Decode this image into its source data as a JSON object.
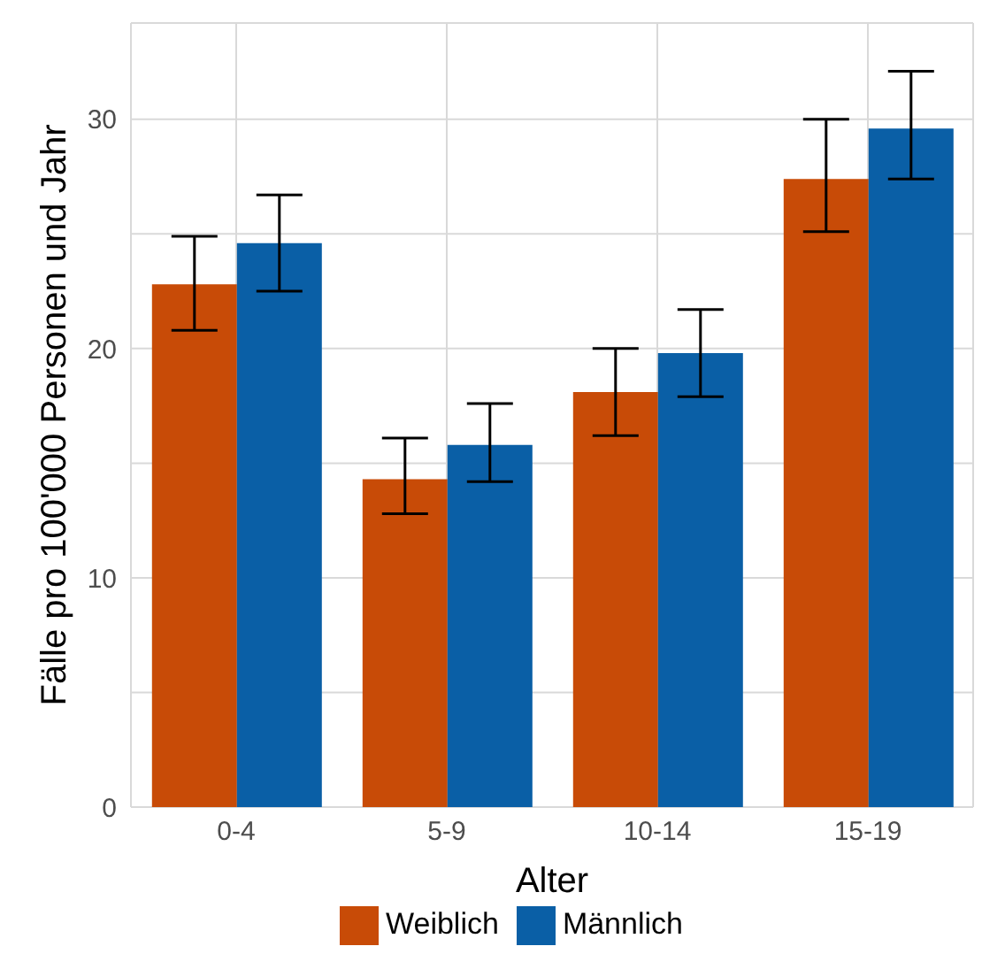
{
  "chart_data": {
    "type": "bar",
    "xlabel": "Alter",
    "ylabel": "Fälle pro 100'000 Personen und Jahr",
    "categories": [
      "0-4",
      "5-9",
      "10-14",
      "15-19"
    ],
    "series": [
      {
        "name": "Weiblich",
        "color": "#c84b07",
        "values": [
          22.8,
          14.3,
          18.1,
          27.4
        ],
        "errors": [
          [
            20.8,
            24.9
          ],
          [
            12.8,
            16.1
          ],
          [
            16.2,
            20.0
          ],
          [
            25.1,
            30.0
          ]
        ]
      },
      {
        "name": "Männlich",
        "color": "#0a5fa6",
        "values": [
          24.6,
          15.8,
          19.8,
          29.6
        ],
        "errors": [
          [
            22.5,
            26.7
          ],
          [
            14.2,
            17.6
          ],
          [
            17.9,
            21.7
          ],
          [
            27.4,
            32.1
          ]
        ]
      }
    ],
    "ylim": [
      0,
      34.2
    ],
    "yticks": [
      0,
      {
        "value": 5,
        "label": null
      },
      10,
      {
        "value": 15,
        "label": null
      },
      20,
      {
        "value": 25,
        "label": null
      },
      30
    ],
    "grid": true,
    "legend": "bottom"
  }
}
